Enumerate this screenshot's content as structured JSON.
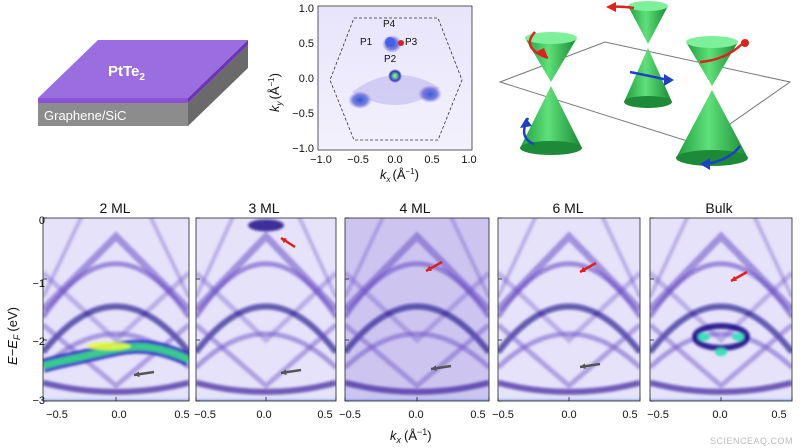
{
  "schematic": {
    "film_label": "PtTe",
    "film_subscript": "2",
    "substrate_label": "Graphene/SiC"
  },
  "fermi_surface": {
    "points": [
      "P4",
      "P1",
      "P3",
      "P2"
    ],
    "xlabel_main": "k",
    "xlabel_sub": "x",
    "xlabel_unit": "(Å",
    "ylabel_main": "k",
    "ylabel_sub": "y",
    "ylabel_unit": "(Å",
    "unit_exp": "−1",
    "unit_close": ")",
    "xticks": [
      "−1.0",
      "−0.5",
      "0.0",
      "0.5",
      "1.0"
    ],
    "yticks": [
      "1.0",
      "0.5",
      "0.0",
      "−0.5",
      "−1.0"
    ]
  },
  "chart_data": {
    "type": "heatmap",
    "panels": [
      {
        "title": "2 ML"
      },
      {
        "title": "3 ML"
      },
      {
        "title": "4 ML"
      },
      {
        "title": "6 ML"
      },
      {
        "title": "Bulk"
      }
    ],
    "xlim": [
      -0.5,
      0.5
    ],
    "ylim": [
      -3,
      0
    ],
    "xticks": [
      "−0.5",
      "0.0",
      "0.5"
    ],
    "yticks": [
      "0",
      "−1",
      "−2",
      "−3"
    ],
    "xlabel_main": "k",
    "xlabel_sub": "x",
    "xlabel_unit": "(Å",
    "xlabel_exp": "−1",
    "xlabel_close": ")",
    "ylabel_E": "E",
    "ylabel_minus": "−E",
    "ylabel_F": "F",
    "ylabel_unit": "(eV)",
    "colors": {
      "low": "#ffffff",
      "mid": "#6a4fc4",
      "high": "#1c0a8a",
      "hot": "#e6ff3a",
      "arrow_red": "#e0201e",
      "arrow_gray": "#555555"
    }
  },
  "watermark": "SCIENCEAQ.COM"
}
